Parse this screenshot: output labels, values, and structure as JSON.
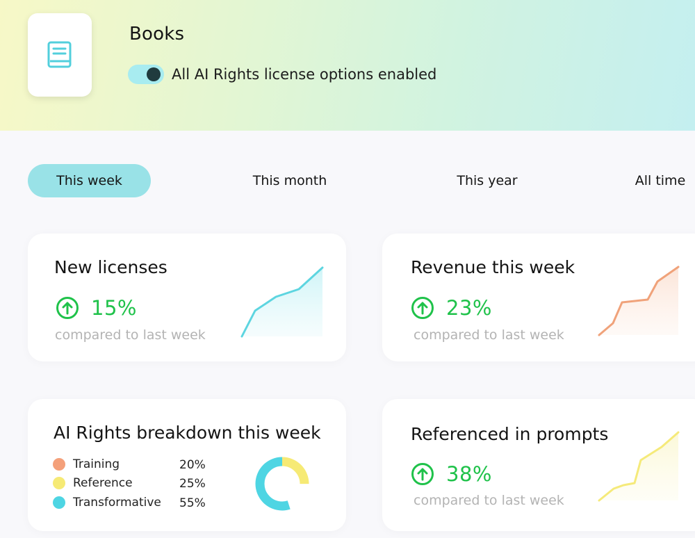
{
  "header": {
    "title": "Books",
    "toggle_on": true,
    "toggle_label": "All AI Rights license options enabled",
    "icon": "book-icon"
  },
  "tabs": [
    {
      "label": "This week",
      "active": true
    },
    {
      "label": "This month",
      "active": false
    },
    {
      "label": "This year",
      "active": false
    },
    {
      "label": "All time",
      "active": false
    }
  ],
  "cards": {
    "new_licenses": {
      "title": "New licenses",
      "pct": "15%",
      "compare": "compared to last week"
    },
    "revenue": {
      "title": "Revenue this week",
      "pct": "23%",
      "compare": "compared to last week"
    },
    "referenced": {
      "title": "Referenced in prompts",
      "pct": "38%",
      "compare": "compared to last week"
    },
    "breakdown": {
      "title": "AI Rights breakdown this week",
      "items": [
        {
          "label": "Training",
          "pct": "20%"
        },
        {
          "label": "Reference",
          "pct": "25%"
        },
        {
          "label": "Transformative",
          "pct": "55%"
        }
      ]
    }
  },
  "colors": {
    "accent_teal": "#99e2e7",
    "positive_green": "#1fc24a",
    "training": "#f4a07a",
    "reference": "#f6ea75",
    "transformative": "#4ed5e3",
    "spark_licenses": "#5dd5e0",
    "spark_revenue": "#f0a27a",
    "spark_referenced": "#f5ea7a"
  }
}
